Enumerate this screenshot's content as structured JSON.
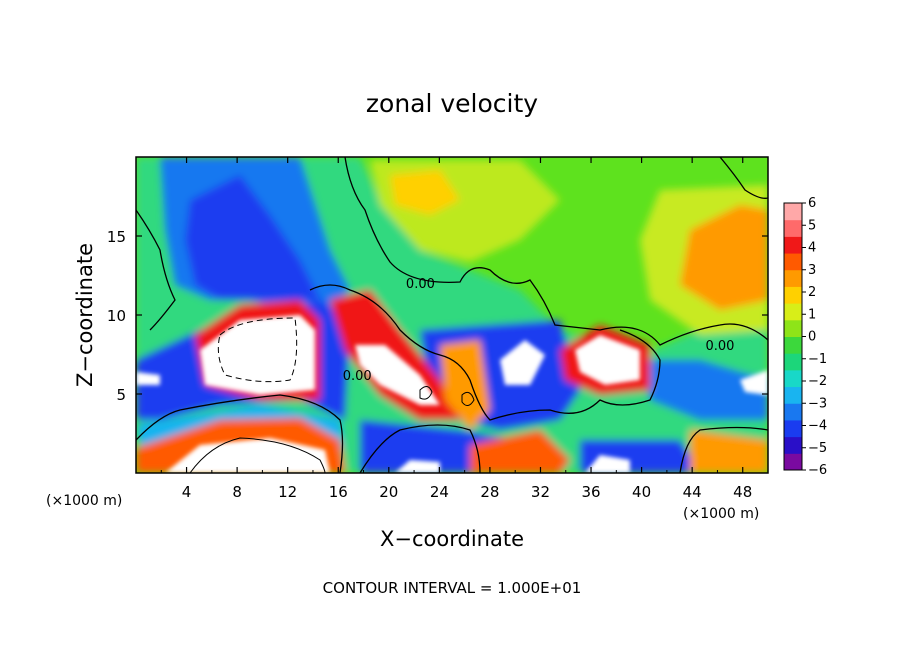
{
  "chart_data": {
    "type": "heatmap",
    "title": "zonal velocity",
    "xlabel": "X−coordinate",
    "ylabel": "Z−coordinate",
    "x_unit_label": "(×1000 m)",
    "z_unit_label": "(×1000 m)",
    "footer": "CONTOUR INTERVAL = 1.000E+01",
    "xlim": [
      0,
      50
    ],
    "ylim": [
      0,
      20
    ],
    "x_ticks": [
      4,
      8,
      12,
      16,
      20,
      24,
      28,
      32,
      36,
      40,
      44,
      48
    ],
    "x_tick_labels": [
      "4",
      "8",
      "12",
      "16",
      "20",
      "24",
      "28",
      "32",
      "36",
      "40",
      "44",
      "48"
    ],
    "y_ticks": [
      5,
      10,
      15
    ],
    "y_tick_labels": [
      "5",
      "10",
      "15"
    ],
    "contour_labels": [
      {
        "text": "0.00",
        "x": 22.5,
        "z": 11.7
      },
      {
        "text": "0.00",
        "x": 17.5,
        "z": 5.9
      },
      {
        "text": "0.00",
        "x": 46.2,
        "z": 7.8
      }
    ],
    "colorbar": {
      "min": -6,
      "max": 6,
      "ticks": [
        6,
        5,
        4,
        3,
        2,
        1,
        0,
        -1,
        -2,
        -3,
        -4,
        -5,
        -6
      ],
      "tick_labels": [
        "6",
        "5",
        "4",
        "3",
        "2",
        "1",
        "0",
        "−1",
        "−2",
        "−3",
        "−4",
        "−5",
        "−6"
      ],
      "colors": [
        "#7a0aa0",
        "#2a0fc8",
        "#1a3cf0",
        "#1978f0",
        "#19b4f0",
        "#18d8c8",
        "#1cd67a",
        "#3cd83c",
        "#8ee418",
        "#d8ee18",
        "#ffd000",
        "#ff9a00",
        "#ff5a00",
        "#f01818",
        "#ff6a6a",
        "#ffa8a8"
      ]
    },
    "grid": false,
    "legend": "colorbar-right"
  }
}
